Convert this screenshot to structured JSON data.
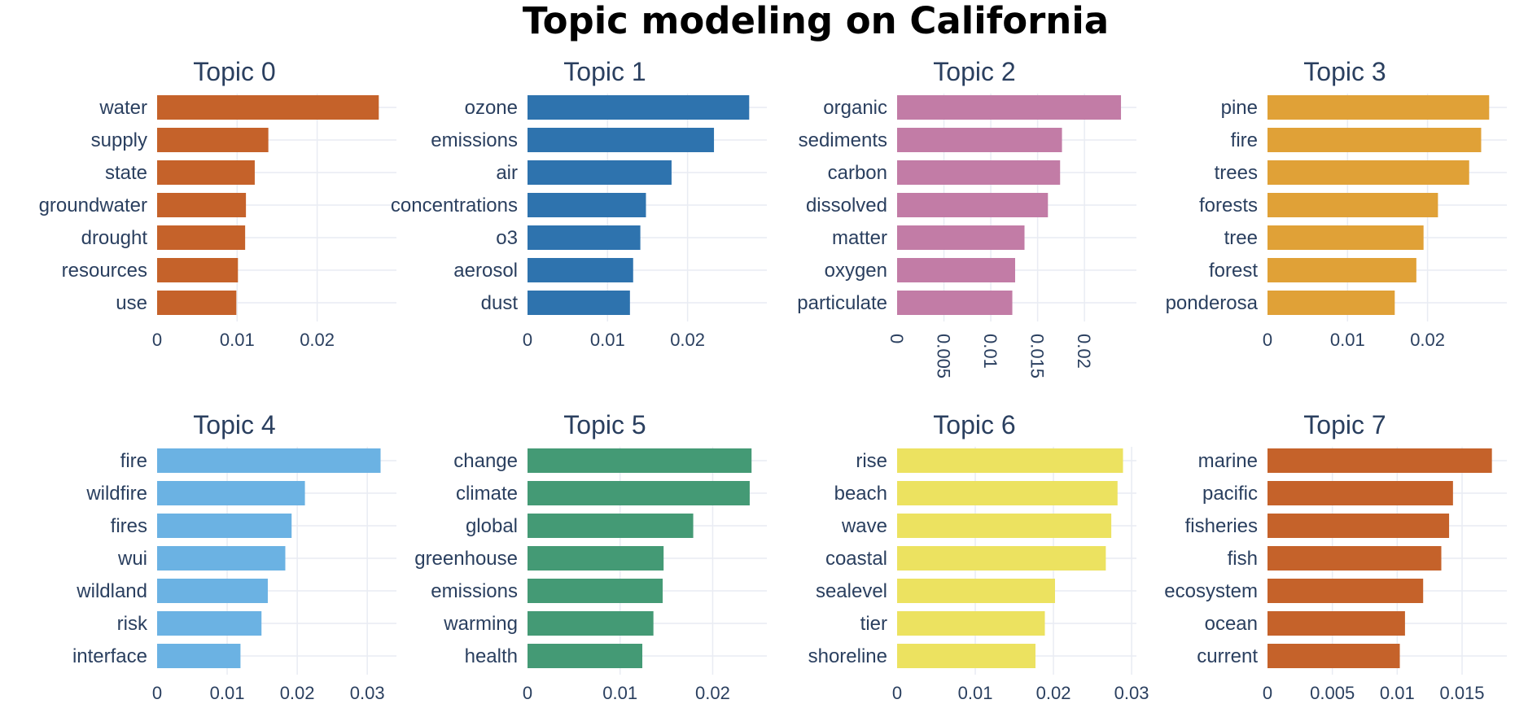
{
  "title": "Topic modeling on California",
  "chart_data": [
    {
      "type": "bar",
      "orientation": "horizontal",
      "title": "Topic 0",
      "color": "#c5622a",
      "categories": [
        "water",
        "supply",
        "state",
        "groundwater",
        "drought",
        "resources",
        "use"
      ],
      "values": [
        0.0277,
        0.0139,
        0.0122,
        0.0111,
        0.011,
        0.0101,
        0.0099
      ],
      "xticks": [
        0,
        0.01,
        0.02
      ],
      "xtick_labels": [
        "0",
        "0.01",
        "0.02"
      ],
      "xlim": [
        0,
        0.0295
      ],
      "tick_rotation": 0
    },
    {
      "type": "bar",
      "orientation": "horizontal",
      "title": "Topic 1",
      "color": "#2e73ae",
      "categories": [
        "ozone",
        "emissions",
        "air",
        "concentrations",
        "o3",
        "aerosol",
        "dust"
      ],
      "values": [
        0.0277,
        0.0233,
        0.018,
        0.0148,
        0.0141,
        0.0132,
        0.0128
      ],
      "xticks": [
        0,
        0.01,
        0.02
      ],
      "xtick_labels": [
        "0",
        "0.01",
        "0.02"
      ],
      "xlim": [
        0,
        0.0295
      ],
      "tick_rotation": 0
    },
    {
      "type": "bar",
      "orientation": "horizontal",
      "title": "Topic 2",
      "color": "#c27ca6",
      "categories": [
        "organic",
        "sediments",
        "carbon",
        "dissolved",
        "matter",
        "oxygen",
        "particulate"
      ],
      "values": [
        0.0239,
        0.0176,
        0.0174,
        0.0161,
        0.0136,
        0.0126,
        0.0123
      ],
      "xticks": [
        0,
        0.005,
        0.01,
        0.015,
        0.02
      ],
      "xtick_labels": [
        "0",
        "0.005",
        "0.01",
        "0.015",
        "0.02"
      ],
      "xlim": [
        0,
        0.0252
      ],
      "tick_rotation": 90
    },
    {
      "type": "bar",
      "orientation": "horizontal",
      "title": "Topic 3",
      "color": "#e0a137",
      "categories": [
        "pine",
        "fire",
        "trees",
        "forests",
        "tree",
        "forest",
        "ponderosa"
      ],
      "values": [
        0.0277,
        0.0267,
        0.0252,
        0.0213,
        0.0195,
        0.0186,
        0.0159
      ],
      "xticks": [
        0,
        0.01,
        0.02
      ],
      "xtick_labels": [
        "0",
        "0.01",
        "0.02"
      ],
      "xlim": [
        0,
        0.0295
      ],
      "tick_rotation": 0
    },
    {
      "type": "bar",
      "orientation": "horizontal",
      "title": "Topic 4",
      "color": "#6bb2e3",
      "categories": [
        "fire",
        "wildfire",
        "fires",
        "wui",
        "wildland",
        "risk",
        "interface"
      ],
      "values": [
        0.0319,
        0.0211,
        0.0192,
        0.0183,
        0.0158,
        0.0149,
        0.0119
      ],
      "xticks": [
        0,
        0.01,
        0.02,
        0.03
      ],
      "xtick_labels": [
        "0",
        "0.01",
        "0.02",
        "0.03"
      ],
      "xlim": [
        0,
        0.0337
      ],
      "tick_rotation": 0
    },
    {
      "type": "bar",
      "orientation": "horizontal",
      "title": "Topic 5",
      "color": "#449a75",
      "categories": [
        "change",
        "climate",
        "global",
        "greenhouse",
        "emissions",
        "warming",
        "health"
      ],
      "values": [
        0.0242,
        0.024,
        0.0179,
        0.0147,
        0.0146,
        0.0136,
        0.0124
      ],
      "xticks": [
        0,
        0.01,
        0.02
      ],
      "xtick_labels": [
        "0",
        "0.01",
        "0.02"
      ],
      "xlim": [
        0,
        0.0255
      ],
      "tick_rotation": 0
    },
    {
      "type": "bar",
      "orientation": "horizontal",
      "title": "Topic 6",
      "color": "#ece260",
      "categories": [
        "rise",
        "beach",
        "wave",
        "coastal",
        "sealevel",
        "tier",
        "shoreline"
      ],
      "values": [
        0.0289,
        0.0282,
        0.0274,
        0.0267,
        0.0202,
        0.0189,
        0.0177
      ],
      "xticks": [
        0,
        0.01,
        0.02,
        0.03
      ],
      "xtick_labels": [
        "0",
        "0.01",
        "0.02",
        "0.03"
      ],
      "xlim": [
        0,
        0.0302
      ],
      "tick_rotation": 0
    },
    {
      "type": "bar",
      "orientation": "horizontal",
      "title": "Topic 7",
      "color": "#c5622a",
      "categories": [
        "marine",
        "pacific",
        "fisheries",
        "fish",
        "ecosystem",
        "ocean",
        "current"
      ],
      "values": [
        0.0173,
        0.0143,
        0.014,
        0.0134,
        0.012,
        0.0106,
        0.0102
      ],
      "xticks": [
        0,
        0.005,
        0.01,
        0.015
      ],
      "xtick_labels": [
        "0",
        "0.005",
        "0.01",
        "0.015"
      ],
      "xlim": [
        0,
        0.0182
      ],
      "tick_rotation": 0
    }
  ]
}
